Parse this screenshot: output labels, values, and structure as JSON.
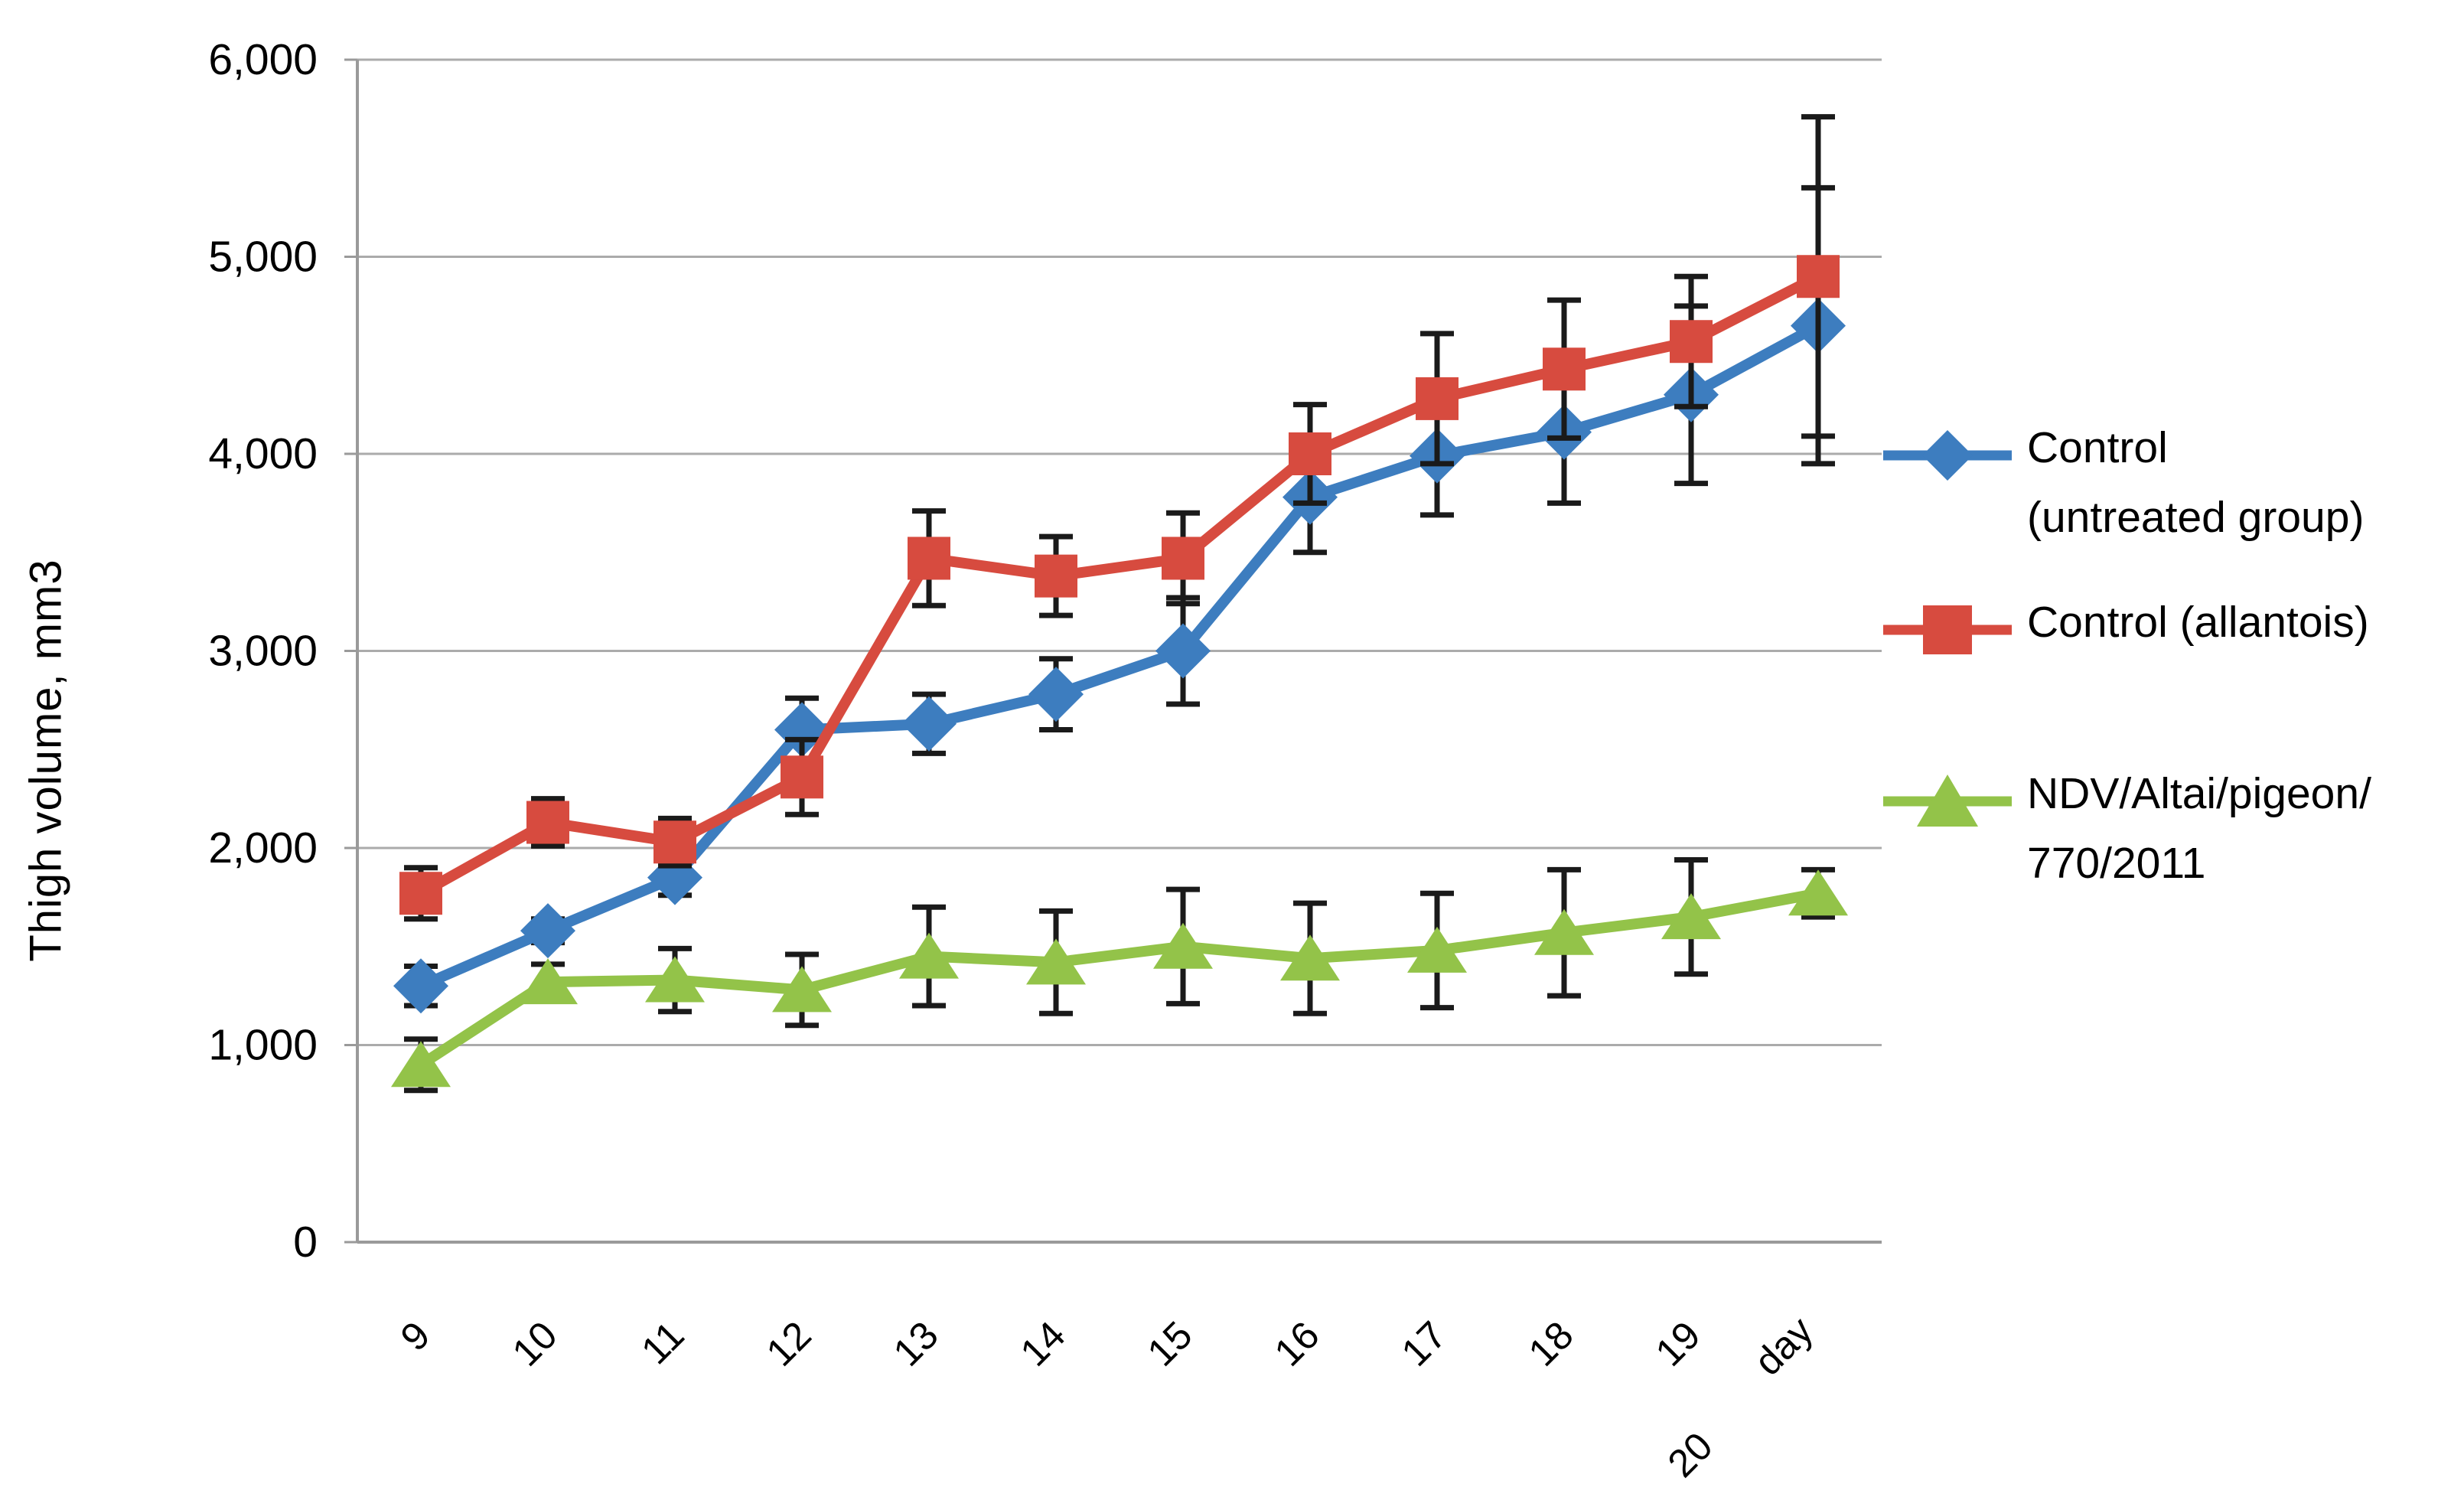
{
  "chart_data": {
    "type": "line",
    "title": "",
    "ylabel": "Thigh volume, mm3",
    "xlabel_unit": "day",
    "ylim": [
      0,
      6000
    ],
    "ytick_step": 1000,
    "ytick_labels": [
      "0",
      "1,000",
      "2,000",
      "3,000",
      "4,000",
      "5,000",
      "6,000"
    ],
    "grid": "horizontal",
    "legend_position": "right",
    "categories": [
      "9",
      "10",
      "11",
      "12",
      "13",
      "14",
      "15",
      "16",
      "17",
      "18",
      "19",
      "20"
    ],
    "series": [
      {
        "name": "Control (untreated group)",
        "marker": "diamond",
        "color": "#3d7dbf",
        "values": [
          1300,
          1580,
          1850,
          2600,
          2630,
          2780,
          3000,
          3780,
          3990,
          4110,
          4300,
          4650
        ],
        "errors": [
          100,
          60,
          90,
          160,
          150,
          180,
          270,
          280,
          300,
          360,
          450,
          700
        ]
      },
      {
        "name": "Control (allantois)",
        "marker": "square",
        "color": "#d74b3f",
        "values": [
          1770,
          2130,
          2030,
          2360,
          3470,
          3380,
          3470,
          4000,
          4280,
          4430,
          4570,
          4900
        ],
        "errors": [
          130,
          120,
          120,
          190,
          240,
          200,
          230,
          250,
          330,
          350,
          330,
          810
        ]
      },
      {
        "name": "NDV/Altai/pigeon/770/2011",
        "marker": "triangle",
        "color": "#93c349",
        "values": [
          900,
          1320,
          1330,
          1280,
          1450,
          1420,
          1500,
          1440,
          1480,
          1570,
          1650,
          1770
        ],
        "errors": [
          130,
          90,
          160,
          180,
          250,
          260,
          290,
          280,
          290,
          320,
          290,
          120
        ]
      }
    ],
    "error_bar_color": "#1a1a1a",
    "gridline_color": "#ababab",
    "axis_color": "#9a9a9a"
  },
  "legend": {
    "items": [
      {
        "lines": [
          "Control",
          "(untreated group)"
        ]
      },
      {
        "lines": [
          "Control (allantois)"
        ]
      },
      {
        "lines": [
          "NDV/Altai/pigeon/",
          "770/2011"
        ]
      }
    ]
  }
}
